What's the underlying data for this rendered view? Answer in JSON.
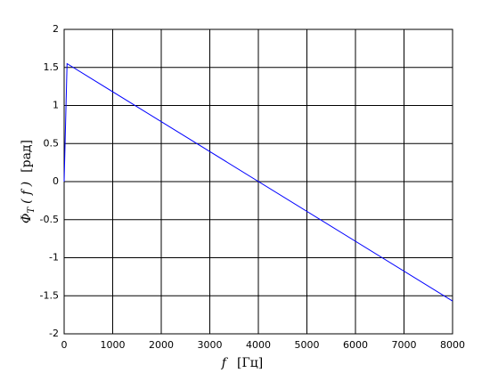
{
  "chart_data": {
    "type": "line",
    "xlabel": {
      "symbol": "f",
      "unit": "[Гц]"
    },
    "ylabel": {
      "symbol": "Φ",
      "subscript": "T",
      "arg": "( f )",
      "unit": "[рад]"
    },
    "x": [
      0,
      60,
      8000
    ],
    "series": [
      {
        "color": "#0000ff",
        "values": [
          0,
          1.55,
          -1.57
        ]
      }
    ],
    "xlim": [
      0,
      8000
    ],
    "xticks": [
      0,
      1000,
      2000,
      3000,
      4000,
      5000,
      6000,
      7000,
      8000
    ],
    "ylim": [
      -2,
      2
    ],
    "yticks": [
      -2,
      -1.5,
      -1,
      -0.5,
      0,
      0.5,
      1,
      1.5,
      2
    ],
    "grid": true
  }
}
